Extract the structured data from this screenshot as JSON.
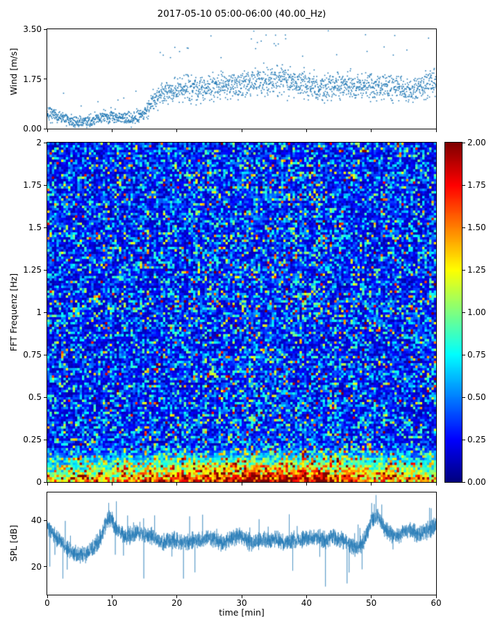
{
  "title": "2017-05-10 05:00-06:00 (40.00_Hz)",
  "chart_data": [
    {
      "type": "scatter",
      "name": "wind-speed",
      "ylabel": "Wind [m/s]",
      "ylim": [
        0,
        3.5
      ],
      "ytick_values": [
        0,
        1.75,
        3.5
      ],
      "ytick_labels": [
        "0.00",
        "1.75",
        "3.50"
      ],
      "xlim": [
        0,
        60
      ],
      "xtick_values": [
        0,
        10,
        20,
        30,
        40,
        50,
        60
      ],
      "marker_color": "#1f77b4",
      "points_per_minute": 34,
      "spread": 0.32,
      "outlier_rate": 0.012,
      "seed": 7,
      "trend": [
        [
          0,
          0.55
        ],
        [
          2,
          0.4
        ],
        [
          3,
          0.3
        ],
        [
          5,
          0.22
        ],
        [
          7,
          0.3
        ],
        [
          9,
          0.45
        ],
        [
          11,
          0.4
        ],
        [
          13,
          0.35
        ],
        [
          15,
          0.55
        ],
        [
          16,
          0.9
        ],
        [
          17,
          1.15
        ],
        [
          18,
          1.3
        ],
        [
          20,
          1.35
        ],
        [
          22,
          1.45
        ],
        [
          24,
          1.4
        ],
        [
          26,
          1.5
        ],
        [
          28,
          1.55
        ],
        [
          30,
          1.5
        ],
        [
          32,
          1.6
        ],
        [
          34,
          1.7
        ],
        [
          36,
          1.75
        ],
        [
          38,
          1.6
        ],
        [
          40,
          1.5
        ],
        [
          42,
          1.45
        ],
        [
          44,
          1.5
        ],
        [
          46,
          1.55
        ],
        [
          48,
          1.45
        ],
        [
          50,
          1.5
        ],
        [
          52,
          1.4
        ],
        [
          54,
          1.45
        ],
        [
          56,
          1.35
        ],
        [
          58,
          1.45
        ],
        [
          60,
          1.6
        ]
      ]
    },
    {
      "type": "heatmap",
      "name": "fft-spectrogram",
      "ylabel": "FFT Frequenz [Hz]",
      "ylim": [
        0,
        2
      ],
      "ytick_values": [
        0,
        0.25,
        0.5,
        0.75,
        1,
        1.25,
        1.5,
        1.75,
        2
      ],
      "ytick_labels": [
        "0",
        "0.25",
        "0.5",
        "0.75",
        "1",
        "1.25",
        "1.5",
        "1.75",
        "2"
      ],
      "xlim": [
        0,
        60
      ],
      "xtick_values": [
        0,
        10,
        20,
        30,
        40,
        50,
        60
      ],
      "colormap": "jet",
      "clim": [
        0,
        2
      ],
      "colorbar_tick_values": [
        0,
        0.25,
        0.5,
        0.75,
        1,
        1.25,
        1.5,
        1.75,
        2
      ],
      "colorbar_tick_labels": [
        "0.00",
        "0.25",
        "0.50",
        "0.75",
        "1.00",
        "1.25",
        "1.50",
        "1.75",
        "2.00"
      ],
      "grid_cols": 168,
      "grid_rows": 140,
      "seed": 99,
      "noise": {
        "base_offset": 0.08,
        "base_scale": 0.33,
        "row_gain_min": 0.88,
        "row_gain_rand": 0.28,
        "hot_freq_max": 0.22,
        "hot_gain_min": 1.1,
        "hot_gain_rand": 1.1,
        "hot_time_center": 34,
        "hot_time_sigma": 13,
        "hot_time_floor": 0.6,
        "col_boost_center": 35,
        "col_boost_sigma": 11,
        "col_boost_amp": 0.18
      }
    },
    {
      "type": "line",
      "name": "spl",
      "ylabel": "SPL [dB]",
      "ylim": [
        8,
        52
      ],
      "ytick_values": [
        20,
        40
      ],
      "ytick_labels": [
        "20",
        "40"
      ],
      "xlim": [
        0,
        60
      ],
      "xtick_values": [
        0,
        10,
        20,
        30,
        40,
        50,
        60
      ],
      "xtick_labels": [
        "0",
        "10",
        "20",
        "30",
        "40",
        "50",
        "60"
      ],
      "xlabel": "time [min]",
      "line_color": "#1f77b4",
      "samples": 3600,
      "noise_amp": 4.4,
      "up_spike_rate": 0.01,
      "down_spike_rate": 0.004,
      "seed": 21,
      "trend": [
        [
          0,
          38
        ],
        [
          0.5,
          36
        ],
        [
          1,
          34
        ],
        [
          2,
          31
        ],
        [
          3,
          28
        ],
        [
          4,
          26
        ],
        [
          5,
          25
        ],
        [
          6,
          26
        ],
        [
          7,
          28
        ],
        [
          8,
          31
        ],
        [
          9,
          38
        ],
        [
          9.5,
          41
        ],
        [
          10,
          40
        ],
        [
          11,
          35
        ],
        [
          12,
          33
        ],
        [
          13,
          34
        ],
        [
          14,
          35
        ],
        [
          15,
          33
        ],
        [
          16,
          34
        ],
        [
          17,
          32
        ],
        [
          18,
          31
        ],
        [
          19,
          32
        ],
        [
          20,
          31
        ],
        [
          21,
          30
        ],
        [
          22,
          31
        ],
        [
          23,
          32
        ],
        [
          24,
          31
        ],
        [
          25,
          33
        ],
        [
          26,
          31
        ],
        [
          27,
          30
        ],
        [
          28,
          32
        ],
        [
          29,
          33
        ],
        [
          30,
          33
        ],
        [
          31,
          31
        ],
        [
          32,
          30
        ],
        [
          33,
          32
        ],
        [
          34,
          31
        ],
        [
          35,
          32
        ],
        [
          36,
          31
        ],
        [
          37,
          30
        ],
        [
          38,
          32
        ],
        [
          39,
          31
        ],
        [
          40,
          33
        ],
        [
          41,
          32
        ],
        [
          42,
          33
        ],
        [
          43,
          31
        ],
        [
          44,
          33
        ],
        [
          45,
          32
        ],
        [
          46,
          31
        ],
        [
          47,
          29
        ],
        [
          48,
          28
        ],
        [
          49,
          32
        ],
        [
          50,
          40
        ],
        [
          51,
          42
        ],
        [
          52,
          37
        ],
        [
          53,
          34
        ],
        [
          54,
          33
        ],
        [
          55,
          35
        ],
        [
          56,
          36
        ],
        [
          57,
          34
        ],
        [
          58,
          35
        ],
        [
          59,
          36
        ],
        [
          60,
          38
        ]
      ]
    }
  ]
}
